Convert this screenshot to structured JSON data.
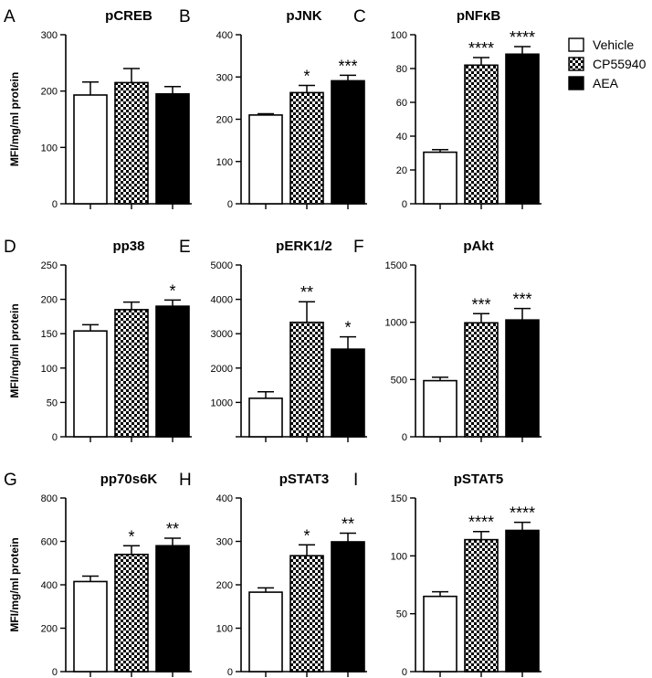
{
  "legend": [
    {
      "name": "Vehicle",
      "fill": "white"
    },
    {
      "name": "CP55940",
      "fill": "checker"
    },
    {
      "name": "AEA",
      "fill": "black"
    }
  ],
  "colors": {
    "axis": "#000000",
    "bar_dark": "#000000",
    "bar_light": "#ffffff"
  },
  "chart_data": [
    {
      "type": "bar",
      "letter": "A",
      "title": "pCREB",
      "ylabel": "MFI/mg/ml protein",
      "ylim": [
        0,
        300
      ],
      "yticks": [
        0,
        100,
        200,
        300
      ],
      "values": [
        193,
        215,
        195
      ],
      "errors": [
        23,
        25,
        13
      ],
      "significance": [
        "",
        "",
        ""
      ]
    },
    {
      "type": "bar",
      "letter": "B",
      "title": "pJNK",
      "ylabel": "",
      "ylim": [
        0,
        400
      ],
      "yticks": [
        0,
        100,
        200,
        300,
        400
      ],
      "values": [
        210,
        263,
        291
      ],
      "errors": [
        3,
        17,
        13
      ],
      "significance": [
        "",
        "*",
        "***"
      ]
    },
    {
      "type": "bar",
      "letter": "C",
      "title": "pNFκB",
      "ylabel": "",
      "ylim": [
        0,
        100
      ],
      "yticks": [
        0,
        20,
        40,
        60,
        80,
        100
      ],
      "values": [
        30.5,
        82,
        88.5
      ],
      "errors": [
        1.5,
        4.5,
        4.5
      ],
      "significance": [
        "",
        "****",
        "****"
      ]
    },
    {
      "type": "bar",
      "letter": "D",
      "title": "pp38",
      "ylabel": "MFI/mg/ml protein",
      "ylim": [
        0,
        250
      ],
      "yticks": [
        0,
        50,
        100,
        150,
        200,
        250
      ],
      "values": [
        154,
        185,
        190
      ],
      "errors": [
        9,
        11,
        9
      ],
      "significance": [
        "",
        "",
        "*"
      ]
    },
    {
      "type": "bar",
      "letter": "E",
      "title": "pERK1/2",
      "ylabel": "",
      "ylim": [
        0,
        5000
      ],
      "yticks": [
        1000,
        2000,
        3000,
        4000,
        5000
      ],
      "values": [
        1120,
        3330,
        2550
      ],
      "errors": [
        190,
        600,
        360
      ],
      "significance": [
        "",
        "**",
        "*"
      ]
    },
    {
      "type": "bar",
      "letter": "F",
      "title": "pAkt",
      "ylabel": "",
      "ylim": [
        0,
        1500
      ],
      "yticks": [
        0,
        500,
        1000,
        1500
      ],
      "values": [
        490,
        995,
        1020
      ],
      "errors": [
        30,
        80,
        100
      ],
      "significance": [
        "",
        "***",
        "***"
      ]
    },
    {
      "type": "bar",
      "letter": "G",
      "title": "pp70s6K",
      "ylabel": "MFI/mg/ml protein",
      "ylim": [
        0,
        800
      ],
      "yticks": [
        0,
        200,
        400,
        600,
        800
      ],
      "values": [
        415,
        540,
        580
      ],
      "errors": [
        25,
        40,
        35
      ],
      "significance": [
        "",
        "*",
        "**"
      ]
    },
    {
      "type": "bar",
      "letter": "H",
      "title": "pSTAT3",
      "ylabel": "",
      "ylim": [
        0,
        400
      ],
      "yticks": [
        0,
        100,
        200,
        300,
        400
      ],
      "values": [
        183,
        267,
        299
      ],
      "errors": [
        10,
        25,
        20
      ],
      "significance": [
        "",
        "*",
        "**"
      ]
    },
    {
      "type": "bar",
      "letter": "I",
      "title": "pSTAT5",
      "ylabel": "",
      "ylim": [
        0,
        150
      ],
      "yticks": [
        0,
        50,
        100,
        150
      ],
      "values": [
        65,
        114,
        122
      ],
      "errors": [
        4,
        7,
        7
      ],
      "significance": [
        "",
        "****",
        "****"
      ]
    }
  ]
}
